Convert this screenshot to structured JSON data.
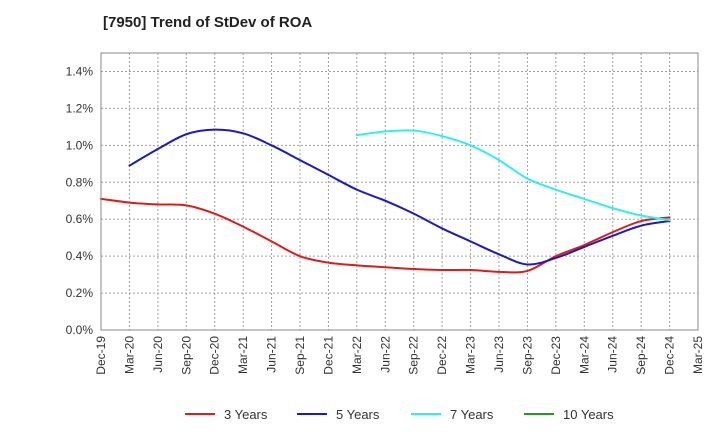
{
  "chart_data": {
    "type": "line",
    "title": "[7950]  Trend of StDev of ROA",
    "xlabel": "",
    "ylabel": "",
    "ylim": [
      0,
      1.5
    ],
    "ytick_values": [
      0,
      0.2,
      0.4,
      0.6,
      0.8,
      1.0,
      1.2,
      1.4
    ],
    "ytick_labels": [
      "0.0%",
      "0.2%",
      "0.4%",
      "0.6%",
      "0.8%",
      "1.0%",
      "1.2%",
      "1.4%"
    ],
    "x_ticks": [
      "Dec-19",
      "Mar-20",
      "Jun-20",
      "Sep-20",
      "Dec-20",
      "Mar-21",
      "Jun-21",
      "Sep-21",
      "Dec-21",
      "Mar-22",
      "Jun-22",
      "Sep-22",
      "Dec-22",
      "Mar-23",
      "Jun-23",
      "Sep-23",
      "Dec-23",
      "Mar-24",
      "Jun-24",
      "Sep-24",
      "Dec-24",
      "Mar-25"
    ],
    "grid": true,
    "legend_position": "bottom",
    "series": [
      {
        "name": "3 Years",
        "color": "#dd1c1c",
        "values": [
          0.71,
          0.69,
          0.68,
          0.675,
          0.63,
          0.56,
          0.48,
          0.4,
          0.365,
          0.35,
          0.34,
          0.33,
          0.325,
          0.325,
          0.315,
          0.32,
          0.4,
          0.46,
          0.53,
          0.59,
          0.61,
          null
        ]
      },
      {
        "name": "5 Years",
        "color": "#1a1ac8",
        "values": [
          null,
          0.89,
          0.98,
          1.06,
          1.085,
          1.065,
          1.0,
          0.92,
          0.84,
          0.76,
          0.7,
          0.63,
          0.55,
          0.48,
          0.41,
          0.355,
          0.39,
          0.45,
          0.51,
          0.565,
          0.59,
          null
        ]
      },
      {
        "name": "7 Years",
        "color": "#33eeee",
        "values": [
          null,
          null,
          null,
          null,
          null,
          null,
          null,
          null,
          null,
          1.055,
          1.075,
          1.08,
          1.05,
          1.0,
          0.92,
          0.82,
          0.76,
          0.71,
          0.66,
          0.62,
          0.595,
          null
        ]
      },
      {
        "name": "10 Years",
        "color": "#229922",
        "values": [
          null,
          null,
          null,
          null,
          null,
          null,
          null,
          null,
          null,
          null,
          null,
          null,
          null,
          null,
          null,
          null,
          null,
          null,
          null,
          null,
          null,
          null
        ]
      }
    ]
  }
}
